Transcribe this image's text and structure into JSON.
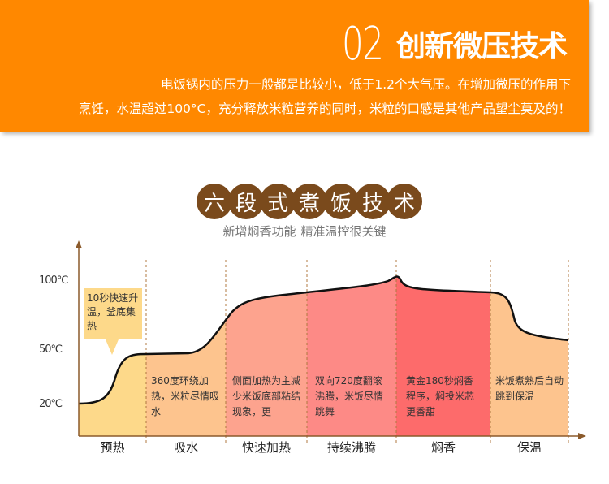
{
  "header": {
    "number": "02",
    "title": "创新微压技术",
    "desc_line1": "电饭锅内的压力一般都是比较小，低于1.2个大气压。在增加微压的作用下",
    "desc_line2": "烹饪，水温超过100°C，充分释放米粒营养的同时，米粒的口感是其他产品望尘莫及的！"
  },
  "section": {
    "title_chars": [
      "六",
      "段",
      "式",
      "煮",
      "饭",
      "技",
      "术"
    ],
    "subtitle_a": "新增焖香功能",
    "subtitle_b": "精准温控很关键"
  },
  "colors": {
    "banner": "#ff8800",
    "badge": "#7a4a1c",
    "stage_fills": [
      "#fdd98a",
      "#fdc48e",
      "#fda38e",
      "#fd8a86",
      "#fd6b6b",
      "#fdc48e"
    ]
  },
  "chart_data": {
    "type": "area",
    "ylabels": [
      "100℃",
      "50℃",
      "20℃"
    ],
    "stages": [
      {
        "name": "预热",
        "note": "10秒快速升温，釜底集热"
      },
      {
        "name": "吸水",
        "note": "360度环绕加热，米粒尽情吸水"
      },
      {
        "name": "快速加热",
        "note": "侧面加热为主减少米饭底部粘结现象，更"
      },
      {
        "name": "持续沸腾",
        "note": "双向720度翻滚沸腾，米饭尽情跳舞"
      },
      {
        "name": "焖香",
        "note": "黄金180秒焖香程序，焖投米芯更香甜"
      },
      {
        "name": "保温",
        "note": "米饭煮熟后自动跳到保温"
      }
    ],
    "curve_temp_c": [
      20,
      28,
      50,
      50,
      58,
      75,
      86,
      96,
      104,
      94,
      92,
      66,
      60
    ]
  }
}
